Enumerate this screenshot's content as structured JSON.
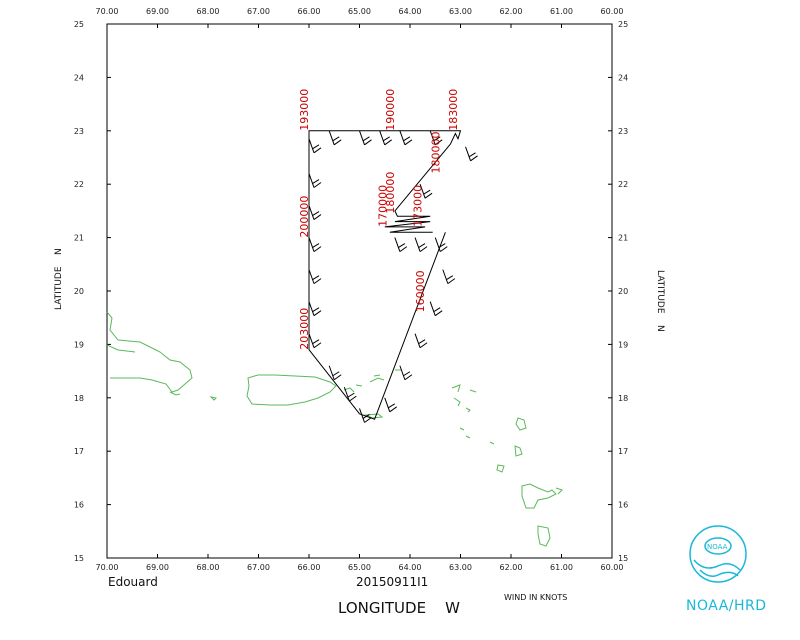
{
  "map": {
    "storm_name": "Edouard",
    "flight_id": "20150911I1",
    "x_axis_title": "LONGITUDE    W",
    "y_axis_title_left": "LATITUDE    N",
    "y_axis_title_right": "LATITUDE    N",
    "wind_units": "WIND IN KNOTS",
    "agency": "NOAA/HRD",
    "lon_range": [
      -70,
      -60
    ],
    "lat_range": [
      15,
      25
    ],
    "lon_tick_labels": [
      "70.00",
      "69.00",
      "68.00",
      "67.00",
      "66.00",
      "65.00",
      "64.00",
      "63.00",
      "62.00",
      "61.00",
      "60.00"
    ],
    "lat_tick_labels": [
      "15",
      "16",
      "17",
      "18",
      "19",
      "20",
      "21",
      "22",
      "23",
      "24",
      "25"
    ],
    "colors": {
      "track": "#000000",
      "coast": "#5cb85c",
      "time_labels": "#cc0000",
      "logo": "#19b8d8"
    }
  },
  "chart_data": {
    "type": "map-track",
    "track": [
      {
        "lon": -63.3,
        "lat": 21.1
      },
      {
        "lon": -64.7,
        "lat": 17.6
      },
      {
        "lon": -65.0,
        "lat": 17.7
      },
      {
        "lon": -66.0,
        "lat": 18.9
      },
      {
        "lon": -66.0,
        "lat": 23.0
      },
      {
        "lon": -63.0,
        "lat": 23.0
      },
      {
        "lon": -63.05,
        "lat": 22.85
      },
      {
        "lon": -63.1,
        "lat": 22.95
      },
      {
        "lon": -63.2,
        "lat": 22.75
      },
      {
        "lon": -64.3,
        "lat": 21.5
      },
      {
        "lon": -64.25,
        "lat": 21.4
      },
      {
        "lon": -63.6,
        "lat": 21.4
      },
      {
        "lon": -64.3,
        "lat": 21.3
      },
      {
        "lon": -63.6,
        "lat": 21.3
      },
      {
        "lon": -64.5,
        "lat": 21.2
      },
      {
        "lon": -63.7,
        "lat": 21.2
      },
      {
        "lon": -64.4,
        "lat": 21.1
      },
      {
        "lon": -63.55,
        "lat": 21.1
      }
    ],
    "time_labels": [
      {
        "text": "193000",
        "lon": -66.0,
        "lat": 23.0
      },
      {
        "text": "190000",
        "lon": -64.3,
        "lat": 23.0
      },
      {
        "text": "183000",
        "lon": -63.05,
        "lat": 23.0
      },
      {
        "text": "200000",
        "lon": -66.0,
        "lat": 21.0
      },
      {
        "text": "203000",
        "lon": -66.0,
        "lat": 18.9
      },
      {
        "text": "160000",
        "lon": -63.7,
        "lat": 19.6
      },
      {
        "text": "170000",
        "lon": -64.45,
        "lat": 21.2
      },
      {
        "text": "180000",
        "lon": -64.3,
        "lat": 21.45
      },
      {
        "text": "173000",
        "lon": -63.75,
        "lat": 21.2
      },
      {
        "text": "180000",
        "lon": -63.4,
        "lat": 22.2
      }
    ],
    "wind_barb_positions": [
      {
        "lon": -66.0,
        "lat": 22.85
      },
      {
        "lon": -65.6,
        "lat": 23.0
      },
      {
        "lon": -65.0,
        "lat": 23.0
      },
      {
        "lon": -64.6,
        "lat": 23.0
      },
      {
        "lon": -64.2,
        "lat": 23.0
      },
      {
        "lon": -63.6,
        "lat": 23.0
      },
      {
        "lon": -62.9,
        "lat": 22.7
      },
      {
        "lon": -66.0,
        "lat": 22.2
      },
      {
        "lon": -66.0,
        "lat": 21.6
      },
      {
        "lon": -66.0,
        "lat": 21.0
      },
      {
        "lon": -66.0,
        "lat": 20.4
      },
      {
        "lon": -66.0,
        "lat": 19.8
      },
      {
        "lon": -66.0,
        "lat": 19.2
      },
      {
        "lon": -65.6,
        "lat": 18.6
      },
      {
        "lon": -65.3,
        "lat": 18.2
      },
      {
        "lon": -65.0,
        "lat": 17.8
      },
      {
        "lon": -64.5,
        "lat": 18.0
      },
      {
        "lon": -64.2,
        "lat": 18.6
      },
      {
        "lon": -63.9,
        "lat": 19.2
      },
      {
        "lon": -63.6,
        "lat": 19.8
      },
      {
        "lon": -63.35,
        "lat": 20.4
      },
      {
        "lon": -63.8,
        "lat": 22.0
      },
      {
        "lon": -64.3,
        "lat": 21.0
      },
      {
        "lon": -63.9,
        "lat": 21.0
      },
      {
        "lon": -63.5,
        "lat": 21.0
      }
    ],
    "xlim": [
      -70,
      -60
    ],
    "ylim": [
      15,
      25
    ],
    "xlabel": "LONGITUDE    W",
    "ylabel": "LATITUDE    N"
  }
}
